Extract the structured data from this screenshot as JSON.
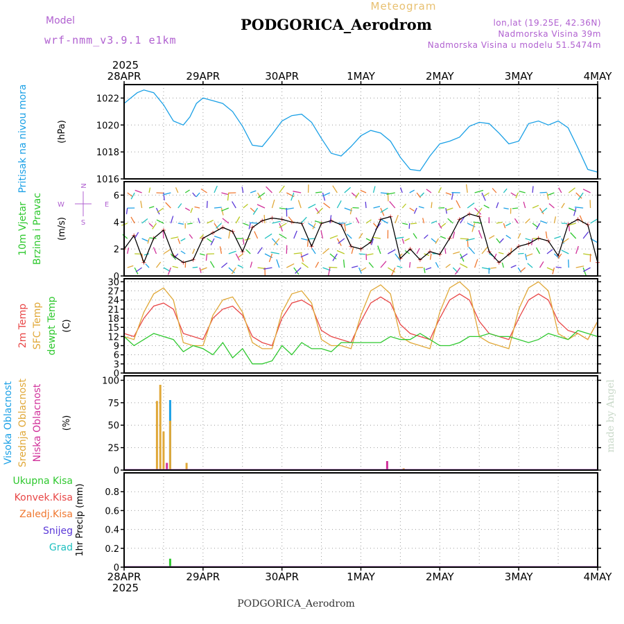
{
  "header": {
    "model_label": "Model",
    "model_name": "wrf-nmm_v3.9.1 e1km",
    "meteogram_label": "Meteogram",
    "station": "PODGORICA_Aerodrom",
    "lonlat": "lon,lat (19.25E, 42.36N)",
    "elevation": "Nadmorska Visina 39m",
    "model_elevation": "Nadmorska Visina u modelu 51.5474m"
  },
  "footer": {
    "station": "PODGORICA_Aerodrom",
    "credit": "made by Angel"
  },
  "time_axis": {
    "year": "2025",
    "ticks": [
      "28APR",
      "29APR",
      "30APR",
      "1MAY",
      "2MAY",
      "3MAY",
      "4MAY"
    ]
  },
  "colors": {
    "pressure": "#1aa0e6",
    "temp2m": "#e84646",
    "sfc_temp": "#e0a838",
    "dewpt": "#2ec82e",
    "wind_speed": "#000000",
    "high_cloud": "#1aa0e6",
    "mid_cloud": "#e0a838",
    "low_cloud": "#d0309a",
    "total_precip": "#2ec82e",
    "convective": "#e84646",
    "freezing": "#f07830",
    "snow": "#5a38d8",
    "hail": "#20c0c0",
    "model": "#b060d0",
    "meteogram": "#e8c070",
    "wind_label": "#2ec82e",
    "compass": "#b060d0"
  },
  "chart_data": [
    {
      "id": "pressure",
      "type": "line",
      "ylabel_lines": [
        "Pritisak na nivou mora"
      ],
      "unit": "(hPa)",
      "ylim": [
        1016,
        1023
      ],
      "yticks": [
        "1016",
        "1018",
        "1020",
        "1022"
      ],
      "xlim": [
        0,
        144
      ],
      "grid": true,
      "series": [
        {
          "color_key": "pressure",
          "x": [
            0,
            2,
            4,
            6,
            9,
            12,
            15,
            18,
            20,
            22,
            24,
            27,
            30,
            33,
            36,
            39,
            42,
            45,
            48,
            51,
            54,
            57,
            60,
            63,
            66,
            69,
            72,
            75,
            78,
            81,
            84,
            87,
            90,
            93,
            96,
            99,
            102,
            105,
            108,
            111,
            114,
            117,
            120,
            123,
            126,
            129,
            132,
            135,
            138,
            141,
            144
          ],
          "y": [
            1021.6,
            1022.0,
            1022.4,
            1022.6,
            1022.4,
            1021.5,
            1020.3,
            1020.0,
            1020.6,
            1021.6,
            1022.0,
            1021.8,
            1021.6,
            1021.0,
            1019.9,
            1018.5,
            1018.4,
            1019.3,
            1020.3,
            1020.7,
            1020.8,
            1020.2,
            1019.0,
            1017.9,
            1017.7,
            1018.4,
            1019.2,
            1019.6,
            1019.4,
            1018.8,
            1017.6,
            1016.7,
            1016.6,
            1017.7,
            1018.6,
            1018.8,
            1019.1,
            1019.9,
            1020.2,
            1020.1,
            1019.4,
            1018.6,
            1018.8,
            1020.1,
            1020.3,
            1020.0,
            1020.3,
            1019.8,
            1018.3,
            1016.7,
            1016.5
          ]
        }
      ]
    },
    {
      "id": "wind",
      "type": "line",
      "ylabel_lines": [
        "10m Vjetar",
        "Brzina i Pravac"
      ],
      "unit": "(m/s)",
      "ylim": [
        0,
        7
      ],
      "yticks": [
        "0",
        "2",
        "4",
        "6"
      ],
      "xlim": [
        0,
        144
      ],
      "grid": true,
      "compass": {
        "n": "N",
        "s": "S",
        "e": "E",
        "w": "W"
      },
      "series": [
        {
          "color_key": "wind_speed",
          "x": [
            0,
            3,
            6,
            9,
            12,
            15,
            18,
            21,
            24,
            27,
            30,
            33,
            36,
            39,
            42,
            45,
            48,
            51,
            54,
            57,
            60,
            63,
            66,
            69,
            72,
            75,
            78,
            81,
            84,
            87,
            90,
            93,
            96,
            99,
            102,
            105,
            108,
            111,
            114,
            117,
            120,
            123,
            126,
            129,
            132,
            135,
            138,
            141,
            144
          ],
          "y": [
            2.0,
            3.0,
            1.0,
            2.8,
            3.4,
            1.5,
            1.0,
            1.2,
            2.8,
            3.2,
            3.6,
            3.3,
            1.8,
            3.6,
            4.1,
            4.3,
            4.2,
            4.0,
            3.9,
            2.2,
            3.9,
            4.1,
            3.8,
            2.2,
            2.0,
            2.5,
            4.2,
            4.4,
            1.3,
            2.0,
            1.2,
            1.8,
            1.6,
            2.8,
            4.2,
            4.6,
            4.4,
            1.8,
            1.0,
            1.6,
            2.2,
            2.4,
            2.8,
            2.6,
            1.5,
            3.8,
            4.2,
            3.8,
            1.0
          ]
        }
      ]
    },
    {
      "id": "temperature",
      "type": "line",
      "ylabel_lines": [
        "2m Temp",
        "SFC Temp",
        "dewpt Temp"
      ],
      "unit": "(C)",
      "ylim": [
        0,
        31
      ],
      "yticks": [
        "0",
        "3",
        "6",
        "9",
        "12",
        "15",
        "18",
        "21",
        "24",
        "27",
        "30"
      ],
      "xlim": [
        0,
        144
      ],
      "grid": true,
      "series": [
        {
          "name": "2m Temp",
          "color_key": "temp2m",
          "x": [
            0,
            3,
            6,
            9,
            12,
            15,
            18,
            21,
            24,
            27,
            30,
            33,
            36,
            39,
            42,
            45,
            48,
            51,
            54,
            57,
            60,
            63,
            66,
            69,
            72,
            75,
            78,
            81,
            84,
            87,
            90,
            93,
            96,
            99,
            102,
            105,
            108,
            111,
            114,
            117,
            120,
            123,
            126,
            129,
            132,
            135,
            138,
            141,
            144
          ],
          "y": [
            13,
            12,
            18,
            22,
            23,
            21,
            13,
            12,
            11,
            18,
            21,
            22,
            19,
            12,
            10,
            9,
            18,
            23,
            24,
            22,
            14,
            12,
            11,
            10,
            17,
            23,
            25,
            23,
            16,
            13,
            12,
            11,
            18,
            24,
            26,
            24,
            17,
            13,
            12,
            11,
            18,
            24,
            26,
            24,
            17,
            14,
            13,
            11,
            17
          ]
        },
        {
          "name": "SFC Temp",
          "color_key": "sfc_temp",
          "x": [
            0,
            3,
            6,
            9,
            12,
            15,
            18,
            21,
            24,
            27,
            30,
            33,
            36,
            39,
            42,
            45,
            48,
            51,
            54,
            57,
            60,
            63,
            66,
            69,
            72,
            75,
            78,
            81,
            84,
            87,
            90,
            93,
            96,
            99,
            102,
            105,
            108,
            111,
            114,
            117,
            120,
            123,
            126,
            129,
            132,
            135,
            138,
            141,
            144
          ],
          "y": [
            12,
            11,
            20,
            26,
            28,
            24,
            10,
            9,
            9,
            19,
            24,
            25,
            20,
            10,
            8,
            8,
            20,
            26,
            27,
            23,
            11,
            9,
            9,
            8,
            19,
            27,
            29,
            26,
            12,
            10,
            9,
            8,
            20,
            28,
            30,
            27,
            12,
            10,
            9,
            8,
            21,
            28,
            30,
            27,
            13,
            11,
            13,
            11,
            17
          ]
        },
        {
          "name": "dewpt Temp",
          "color_key": "dewpt",
          "x": [
            0,
            3,
            6,
            9,
            12,
            15,
            18,
            21,
            24,
            27,
            30,
            33,
            36,
            39,
            42,
            45,
            48,
            51,
            54,
            57,
            60,
            63,
            66,
            69,
            72,
            75,
            78,
            81,
            84,
            87,
            90,
            93,
            96,
            99,
            102,
            105,
            108,
            111,
            114,
            117,
            120,
            123,
            126,
            129,
            132,
            135,
            138,
            141,
            144
          ],
          "y": [
            12,
            9,
            11,
            13,
            12,
            11,
            7,
            9,
            8,
            6,
            10,
            5,
            8,
            3,
            3,
            4,
            9,
            6,
            10,
            8,
            8,
            7,
            10,
            10,
            10,
            10,
            10,
            12,
            11,
            11,
            13,
            11,
            9,
            9,
            10,
            12,
            12,
            13,
            12,
            12,
            11,
            10,
            11,
            13,
            12,
            11,
            14,
            13,
            12
          ]
        }
      ]
    },
    {
      "id": "cloud",
      "type": "bar",
      "ylabel_lines": [
        "Visoka Oblacnost",
        "Srednja Oblacnost",
        "Niska Oblacnost"
      ],
      "unit": "(%)",
      "ylim": [
        0,
        105
      ],
      "yticks": [
        "0",
        "25",
        "50",
        "75",
        "100"
      ],
      "xlim": [
        0,
        144
      ],
      "grid": true,
      "series": [
        {
          "name": "Visoka Oblacnost",
          "color_key": "high_cloud",
          "x": [
            14,
            73,
            103
          ],
          "values": [
            78,
            1,
            1
          ]
        },
        {
          "name": "Srednja Oblacnost",
          "color_key": "mid_cloud",
          "x": [
            10,
            11,
            12,
            14,
            19,
            85
          ],
          "values": [
            77,
            95,
            43,
            55,
            8,
            2
          ]
        },
        {
          "name": "Niska Oblacnost",
          "color_key": "low_cloud",
          "x": [
            13,
            80
          ],
          "values": [
            8,
            10
          ]
        }
      ]
    },
    {
      "id": "precip",
      "type": "bar",
      "ylabel_lines": [
        "1hr Precip (mm)"
      ],
      "legend": [
        "Ukupna Kisa",
        "Konvek.Kisa",
        "Zaledj.Kisa",
        "Snijeg",
        "Grad"
      ],
      "legend_color_keys": [
        "total_precip",
        "convective",
        "freezing",
        "snow",
        "hail"
      ],
      "ylim": [
        0,
        1.0
      ],
      "yticks": [
        "0",
        "0.2",
        "0.4",
        "0.6",
        "0.8"
      ],
      "xlim": [
        0,
        144
      ],
      "grid": true,
      "series": [
        {
          "name": "Ukupna Kisa",
          "color_key": "total_precip",
          "x": [
            14
          ],
          "values": [
            0.09
          ]
        }
      ]
    }
  ]
}
